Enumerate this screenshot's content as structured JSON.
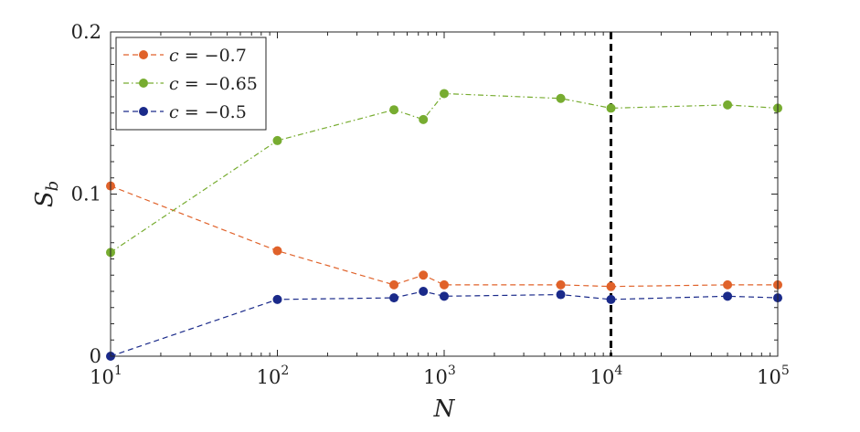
{
  "chart_data": {
    "type": "line",
    "title": "",
    "xlabel": "N",
    "ylabel": "S",
    "ylabel_sub": "b",
    "xscale": "log",
    "xlim": [
      10,
      100000
    ],
    "ylim": [
      0,
      0.2
    ],
    "yticks": [
      {
        "value": 0,
        "label": "0"
      },
      {
        "value": 0.1,
        "label": "0.1"
      },
      {
        "value": 0.2,
        "label": "0.2"
      }
    ],
    "xticks": [
      {
        "value": 10,
        "base": "10",
        "exp": "1"
      },
      {
        "value": 100,
        "base": "10",
        "exp": "2"
      },
      {
        "value": 1000,
        "base": "10",
        "exp": "3"
      },
      {
        "value": 10000,
        "base": "10",
        "exp": "4"
      },
      {
        "value": 100000,
        "base": "10",
        "exp": "5"
      }
    ],
    "vline": {
      "x": 10000,
      "style": "dashed",
      "color": "#000000"
    },
    "legend_position": "top-left",
    "series": [
      {
        "name": "c = −0.7",
        "legend_var": "c",
        "legend_eq": " = −0.7",
        "color": "#E0622A",
        "dash": "dashed",
        "x": [
          10,
          100,
          500,
          750,
          1000,
          5000,
          10000,
          50000,
          100000
        ],
        "y": [
          0.105,
          0.065,
          0.044,
          0.05,
          0.044,
          0.044,
          0.043,
          0.044,
          0.044
        ]
      },
      {
        "name": "c = −0.65",
        "legend_var": "c",
        "legend_eq": " = −0.65",
        "color": "#77AC30",
        "dash": "dash-dot",
        "x": [
          10,
          100,
          500,
          750,
          1000,
          5000,
          10000,
          50000,
          100000
        ],
        "y": [
          0.064,
          0.133,
          0.152,
          0.146,
          0.162,
          0.159,
          0.153,
          0.155,
          0.153
        ]
      },
      {
        "name": "c = −0.5",
        "legend_var": "c",
        "legend_eq": " = −0.5",
        "color": "#1A2A8A",
        "dash": "dashed",
        "x": [
          10,
          100,
          500,
          750,
          1000,
          5000,
          10000,
          50000,
          100000
        ],
        "y": [
          0.0,
          0.035,
          0.036,
          0.04,
          0.037,
          0.038,
          0.035,
          0.037,
          0.036
        ]
      }
    ]
  }
}
